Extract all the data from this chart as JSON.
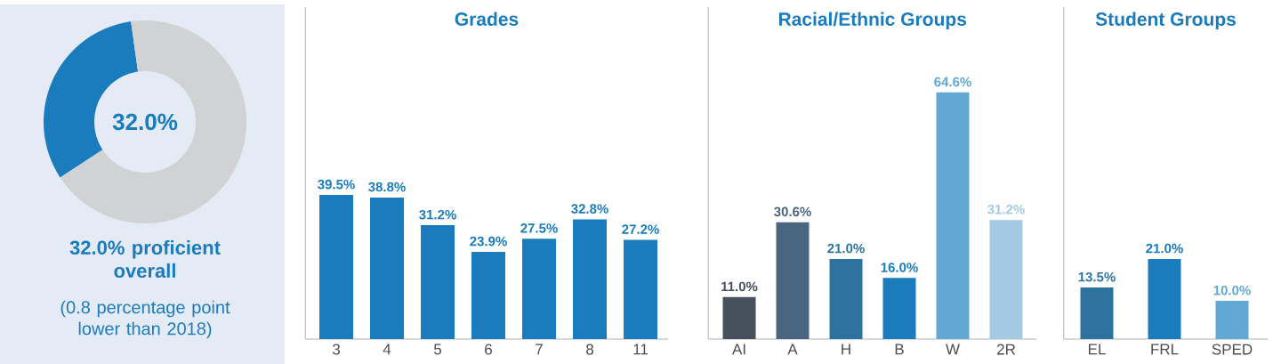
{
  "chart_data": [
    {
      "type": "donut",
      "categories": [
        null,
        null
      ],
      "values": [
        32.0,
        68.0
      ],
      "colors": [
        "#1a7bbd",
        "#d1d2d4"
      ],
      "value_labels": [
        "32.0%",
        null
      ],
      "annotations": [
        "32.0% proficient overall",
        "(0.8 percentage point lower than 2018)"
      ]
    },
    {
      "type": "bar",
      "title": "Grades",
      "categories": [
        "3",
        "4",
        "5",
        "6",
        "7",
        "8",
        "11"
      ],
      "values": [
        39.5,
        38.8,
        31.2,
        23.9,
        27.5,
        32.8,
        27.2
      ],
      "colors": [
        "#1a7bbd",
        "#1a7bbd",
        "#1a7bbd",
        "#1a7bbd",
        "#1a7bbd",
        "#1a7bbd",
        "#1a7bbd"
      ],
      "value_labels": [
        "39.5%",
        "38.8%",
        "31.2%",
        "23.9%",
        "27.5%",
        "32.8%",
        "27.2%"
      ]
    },
    {
      "type": "bar",
      "title": "Racial/Ethnic Groups",
      "categories": [
        "AI",
        "A",
        "H",
        "B",
        "W",
        "2R"
      ],
      "values": [
        11.0,
        30.6,
        21.0,
        16.0,
        64.6,
        31.2
      ],
      "colors": [
        "#46515d",
        "#4a6580",
        "#2e72a0",
        "#1a7bbd",
        "#62a8d4",
        "#a3c9e3"
      ],
      "value_labels": [
        "11.0%",
        "30.6%",
        "21.0%",
        "16.0%",
        "64.6%",
        "31.2%"
      ]
    },
    {
      "type": "bar",
      "title": "Student Groups",
      "categories": [
        "EL",
        "FRL",
        "SPED"
      ],
      "values": [
        13.5,
        21.0,
        10.0
      ],
      "colors": [
        "#2e72a0",
        "#1a7bbd",
        "#62a8d4"
      ],
      "value_labels": [
        "13.5%",
        "21.0%",
        "10.0%"
      ]
    }
  ]
}
